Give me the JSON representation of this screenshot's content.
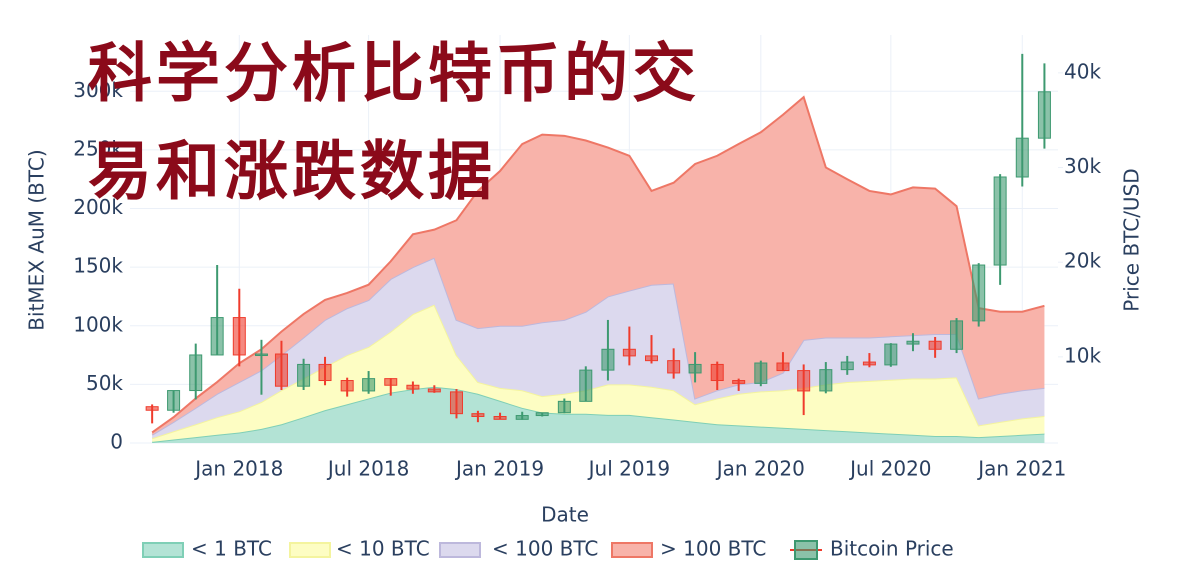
{
  "chart_data": {
    "type": "area",
    "overlay_title": [
      "科学分析比特币的交",
      "易和涨跌数据"
    ],
    "xlabel": "Date",
    "ylabel": "BitMEX AuM (BTC)",
    "y2label": "Price BTC/USD",
    "stacked": true,
    "grid": true,
    "legend": "bottom",
    "x": [
      "2017-09",
      "2017-10",
      "2017-11",
      "2017-12",
      "2018-01",
      "2018-02",
      "2018-03",
      "2018-04",
      "2018-05",
      "2018-06",
      "2018-07",
      "2018-08",
      "2018-09",
      "2018-10",
      "2018-11",
      "2018-12",
      "2019-01",
      "2019-02",
      "2019-03",
      "2019-04",
      "2019-05",
      "2019-06",
      "2019-07",
      "2019-08",
      "2019-09",
      "2019-10",
      "2019-11",
      "2019-12",
      "2020-01",
      "2020-02",
      "2020-03",
      "2020-04",
      "2020-05",
      "2020-06",
      "2020-07",
      "2020-08",
      "2020-09",
      "2020-10",
      "2020-11",
      "2020-12",
      "2021-01",
      "2021-02"
    ],
    "series": [
      {
        "name": "< 1 BTC",
        "color": "#b3e3d5",
        "line_color": "#7fcfb6",
        "values": [
          1000,
          3000,
          5000,
          7000,
          9000,
          12000,
          16000,
          22000,
          28000,
          33000,
          38000,
          43000,
          46000,
          48000,
          46000,
          42000,
          36000,
          30000,
          26000,
          25000,
          25000,
          24000,
          24000,
          22000,
          20000,
          18000,
          16000,
          15000,
          14000,
          13000,
          12000,
          11000,
          10000,
          9000,
          8000,
          7000,
          6000,
          6000,
          5000,
          6000,
          7000,
          8000
        ]
      },
      {
        "name": "< 10 BTC",
        "color": "#fdfdc3",
        "line_color": "#f4f49e",
        "values": [
          3000,
          7000,
          11000,
          15000,
          18000,
          23000,
          29000,
          33000,
          37000,
          42000,
          44000,
          52000,
          64000,
          70000,
          29000,
          10000,
          11000,
          15000,
          14000,
          17000,
          20000,
          26000,
          26000,
          26000,
          25000,
          15000,
          22000,
          27000,
          30000,
          32000,
          35000,
          39000,
          42000,
          44000,
          46000,
          48000,
          49000,
          50000,
          10000,
          12000,
          14000,
          15000
        ]
      },
      {
        "name": "< 100 BTC",
        "color": "#dcd9ee",
        "line_color": "#bdb8dc",
        "values": [
          3000,
          8000,
          14000,
          20000,
          25000,
          27000,
          30000,
          35000,
          40000,
          40000,
          40000,
          45000,
          40000,
          40000,
          30000,
          46000,
          53000,
          55000,
          63000,
          63000,
          67000,
          75000,
          80000,
          87000,
          91000,
          5000,
          7000,
          8000,
          8000,
          15000,
          41000,
          40000,
          38000,
          37000,
          37000,
          37000,
          38000,
          37000,
          23000,
          24000,
          24000,
          24000
        ]
      },
      {
        "name": "> 100 BTC",
        "color": "#f8b3aa",
        "line_color": "#ee7766",
        "values": [
          2000,
          4000,
          8000,
          10000,
          16000,
          18000,
          20000,
          20000,
          17000,
          13000,
          13000,
          15000,
          28000,
          24000,
          85000,
          117000,
          132000,
          155000,
          160000,
          157000,
          146000,
          127000,
          115000,
          80000,
          86000,
          200000,
          200000,
          205000,
          213000,
          220000,
          207000,
          145000,
          135000,
          125000,
          121000,
          126000,
          124000,
          109000,
          77000,
          70000,
          67000,
          70000
        ]
      }
    ],
    "price": {
      "name": "Bitcoin Price",
      "type": "candlestick",
      "axis": "y2",
      "increasing_color": "#3d9970",
      "decreasing_color": "#ef3b2c",
      "open": [
        4735,
        4360,
        6440,
        10200,
        14150,
        10200,
        10300,
        6900,
        9200,
        7500,
        6400,
        7700,
        7000,
        6600,
        6300,
        4000,
        3700,
        3400,
        3800,
        4100,
        5300,
        8600,
        10800,
        10100,
        9600,
        8300,
        9200,
        7500,
        7200,
        9350,
        8550,
        6400,
        8650,
        9450,
        9150,
        11350,
        11650,
        10800,
        13800,
        19700,
        29000,
        33100
      ],
      "high": [
        4975,
        6450,
        11400,
        19700,
        17200,
        11800,
        11700,
        9800,
        10000,
        7800,
        8500,
        7750,
        7400,
        7000,
        6600,
        4300,
        4100,
        4200,
        4100,
        5600,
        9000,
        13900,
        13200,
        12300,
        10900,
        10500,
        9500,
        7700,
        9600,
        10500,
        9200,
        9450,
        10100,
        10400,
        11450,
        12500,
        12100,
        14100,
        19900,
        29300,
        42000,
        41000
      ],
      "low": [
        2972,
        4100,
        5500,
        10200,
        9000,
        6000,
        6500,
        6500,
        7000,
        5800,
        6100,
        5900,
        6100,
        6200,
        3500,
        3100,
        3400,
        3350,
        3700,
        4050,
        5300,
        7500,
        9100,
        9300,
        7700,
        7300,
        6500,
        6400,
        6900,
        8500,
        3850,
        6150,
        8100,
        8900,
        8950,
        10600,
        9900,
        10400,
        13200,
        17600,
        28000,
        32000
      ],
      "close": [
        4360,
        6440,
        10200,
        14150,
        10200,
        10300,
        6900,
        9200,
        7500,
        6400,
        7700,
        7000,
        6600,
        6300,
        4000,
        3700,
        3400,
        3800,
        4100,
        5300,
        8600,
        10800,
        10100,
        9600,
        8300,
        9200,
        7500,
        7200,
        9350,
        8550,
        6400,
        8650,
        9450,
        9150,
        11350,
        11650,
        10800,
        13800,
        19700,
        29000,
        33100,
        38000
      ]
    },
    "xlim": [
      "2017-08-01",
      "2021-02-20"
    ],
    "xticks": [
      {
        "value": "2018-01-01",
        "label": "Jan 2018"
      },
      {
        "value": "2018-07-01",
        "label": "Jul 2018"
      },
      {
        "value": "2019-01-01",
        "label": "Jan 2019"
      },
      {
        "value": "2019-07-01",
        "label": "Jul 2019"
      },
      {
        "value": "2020-01-01",
        "label": "Jan 2020"
      },
      {
        "value": "2020-07-01",
        "label": "Jul 2020"
      },
      {
        "value": "2021-01-01",
        "label": "Jan 2021"
      }
    ],
    "ylim": [
      0,
      348000
    ],
    "yticks": [
      0,
      {
        "value": 50000,
        "label": "50k"
      },
      {
        "value": 100000,
        "label": "100k"
      },
      {
        "value": 150000,
        "label": "150k"
      },
      {
        "value": 200000,
        "label": "200k"
      },
      {
        "value": 250000,
        "label": "250k"
      },
      {
        "value": 300000,
        "label": "300k"
      }
    ],
    "y2lim": [
      900,
      44000
    ],
    "y2ticks": [
      {
        "value": 10000,
        "label": "10k"
      },
      {
        "value": 20000,
        "label": "20k"
      },
      {
        "value": 30000,
        "label": "30k"
      },
      {
        "value": 40000,
        "label": "40k"
      }
    ]
  }
}
